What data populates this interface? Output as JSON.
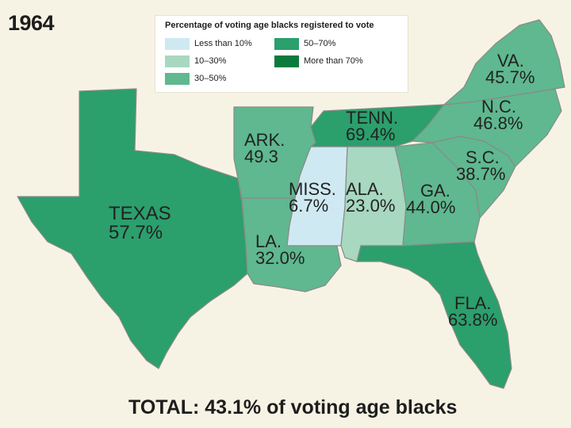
{
  "year": "1964",
  "legend": {
    "title": "Percentage of voting age blacks registered to vote",
    "items": [
      {
        "label": "Less than 10%",
        "color": "#cfe9f2"
      },
      {
        "label": "10–30%",
        "color": "#a8d8c0"
      },
      {
        "label": "30–50%",
        "color": "#5fb88f"
      },
      {
        "label": "50–70%",
        "color": "#2b9f6c"
      },
      {
        "label": "More than 70%",
        "color": "#0d7a3d"
      }
    ]
  },
  "states": {
    "texas": {
      "name": "TEXAS",
      "value": "57.7%",
      "color": "#2b9f6c"
    },
    "arkansas": {
      "name": "ARK.",
      "value": "49.3",
      "color": "#5fb88f"
    },
    "louisiana": {
      "name": "LA.",
      "value": "32.0%",
      "color": "#5fb88f"
    },
    "mississippi": {
      "name": "MISS.",
      "value": "6.7%",
      "color": "#cfe9f2"
    },
    "alabama": {
      "name": "ALA.",
      "value": "23.0%",
      "color": "#a8d8c0"
    },
    "tennessee": {
      "name": "TENN.",
      "value": "69.4%",
      "color": "#2b9f6c"
    },
    "georgia": {
      "name": "GA.",
      "value": "44.0%",
      "color": "#5fb88f"
    },
    "florida": {
      "name": "FLA.",
      "value": "63.8%",
      "color": "#2b9f6c"
    },
    "south_carolina": {
      "name": "S.C.",
      "value": "38.7%",
      "color": "#5fb88f"
    },
    "north_carolina": {
      "name": "N.C.",
      "value": "46.8%",
      "color": "#5fb88f"
    },
    "virginia": {
      "name": "VA.",
      "value": "45.7%",
      "color": "#5fb88f"
    }
  },
  "total": "TOTAL: 43.1% of voting age blacks"
}
